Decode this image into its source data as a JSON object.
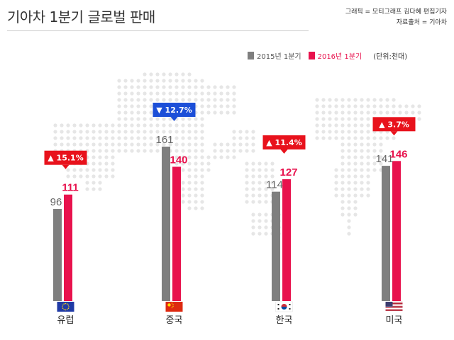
{
  "header": {
    "title": "기아차 1분기 글로벌 판매",
    "credit_line1": "그래픽 = 모티그래프 김다혜 편집기자",
    "credit_line2": "자료출처 = 기아차"
  },
  "colors": {
    "old_series": "#7f7f7f",
    "new_series": "#e8124d",
    "badge_up": "#e8121c",
    "badge_down": "#1c4fd8"
  },
  "chart_data": {
    "type": "bar",
    "categories": [
      "유럽",
      "중국",
      "한국",
      "미국"
    ],
    "unit": "(단위:천대)",
    "series": [
      {
        "name": "2015년 1분기",
        "values": [
          96,
          161,
          114,
          141
        ]
      },
      {
        "name": "2016년 1분기",
        "values": [
          111,
          140,
          127,
          146
        ]
      }
    ],
    "changes": [
      {
        "label": "▲ 15.1%",
        "direction": "up"
      },
      {
        "label": "▼ 12.7%",
        "direction": "down"
      },
      {
        "label": "▲ 11.4%",
        "direction": "up"
      },
      {
        "label": "▲ 3.7%",
        "direction": "up"
      }
    ],
    "flags": [
      "eu-flag-icon",
      "china-flag-icon",
      "korea-flag-icon",
      "usa-flag-icon"
    ],
    "legend_position": "top-right",
    "grid": false
  }
}
